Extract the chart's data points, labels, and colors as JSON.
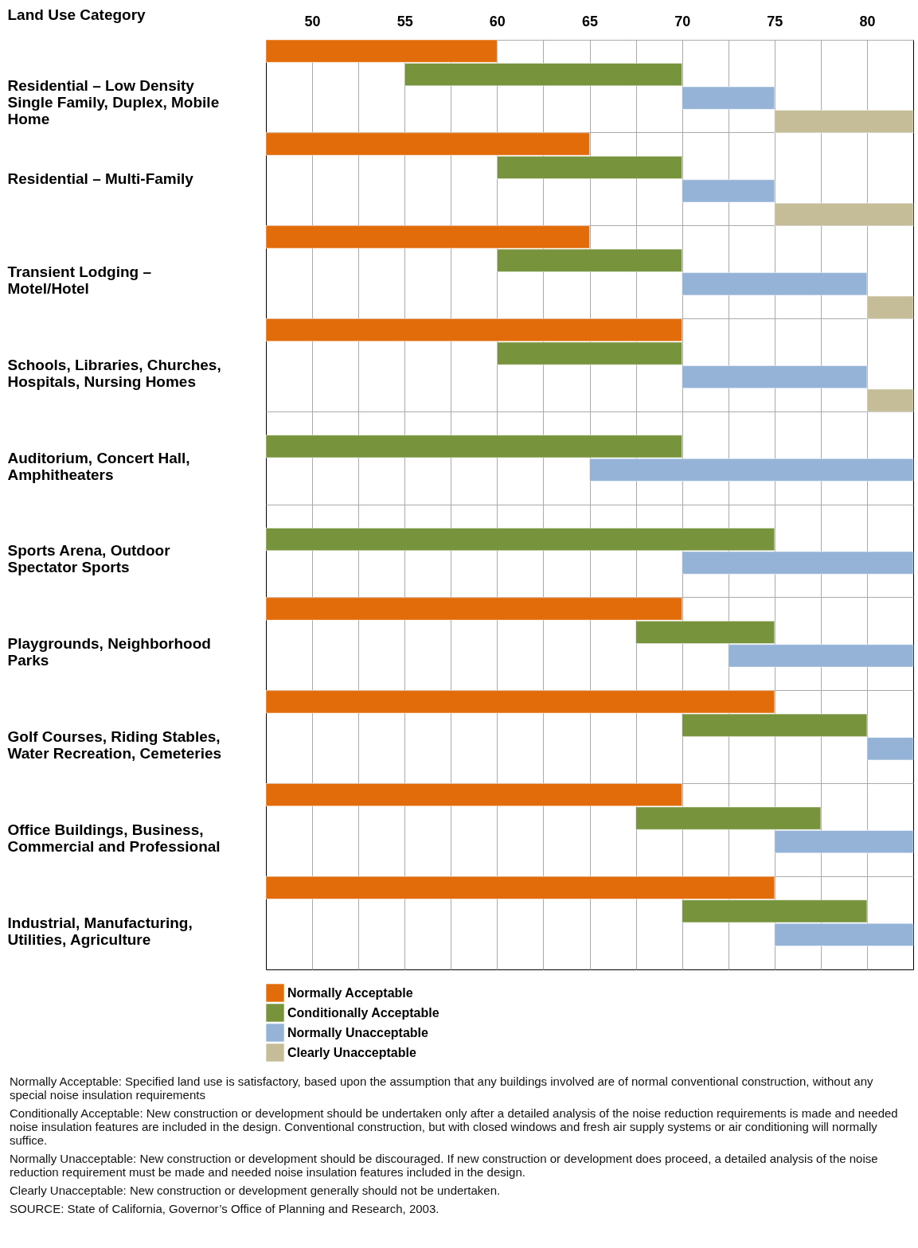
{
  "chart_data": {
    "type": "bar",
    "orientation": "horizontal",
    "ylabel": "Land Use Category",
    "categories": [
      "Residential – Low Density Single Family, Duplex, Mobile Home",
      "Residential – Multi-Family",
      "Transient Lodging – Motel/Hotel",
      "Schools, Libraries, Churches, Hospitals, Nursing Homes",
      "Auditorium, Concert Hall, Amphitheaters",
      "Sports Arena, Outdoor Spectator Sports",
      "Playgrounds, Neighborhood Parks",
      "Golf Courses, Riding Stables, Water Recreation, Cemeteries",
      "Office Buildings, Business, Commercial and Professional",
      "Industrial, Manufacturing, Utilities, Agriculture"
    ],
    "series": [
      {
        "name": "Normally Acceptable",
        "color": "#e36c0a",
        "base": [
          47.5,
          47.5,
          47.5,
          47.5,
          null,
          null,
          47.5,
          47.5,
          47.5,
          47.5
        ],
        "values": [
          12.5,
          17.5,
          17.5,
          22.5,
          null,
          null,
          22.5,
          27.5,
          22.5,
          27.5
        ]
      },
      {
        "name": "Conditionally Acceptable",
        "color": "#77933c",
        "base": [
          55,
          60,
          60,
          60,
          47.5,
          47.5,
          67.5,
          70,
          67.5,
          70
        ],
        "values": [
          15,
          10,
          10,
          10,
          22.5,
          27.5,
          7.5,
          10,
          10,
          10
        ]
      },
      {
        "name": "Normally Unacceptable",
        "color": "#95b3d7",
        "base": [
          70,
          70,
          70,
          70,
          65,
          70,
          72.5,
          80,
          75,
          75
        ],
        "values": [
          5,
          5,
          10,
          10,
          17.5,
          12.5,
          10,
          2.5,
          7.5,
          7.5
        ]
      },
      {
        "name": "Clearly Unacceptable",
        "color": "#c4bd97",
        "base": [
          75,
          75,
          80,
          80,
          null,
          null,
          null,
          null,
          null,
          null
        ],
        "values": [
          7.5,
          7.5,
          2.5,
          2.5,
          null,
          null,
          null,
          null,
          null,
          null
        ]
      }
    ],
    "xlim": [
      47.5,
      82.5
    ],
    "xticks": [
      50,
      {
        "value": 52.5,
        "label": null
      },
      55,
      {
        "value": 57.5,
        "label": null
      },
      60,
      {
        "value": 62.5,
        "label": null
      },
      65,
      {
        "value": 67.5,
        "label": null
      },
      70,
      {
        "value": 72.5,
        "label": null
      },
      75,
      {
        "value": 77.5,
        "label": null
      },
      80
    ],
    "grid": true,
    "legend": "bottom",
    "annotations": [
      "Normally Acceptable: Specified land use is satisfactory, based upon the assumption that any buildings involved are of normal conventional construction, without any special noise insulation requirements",
      "Conditionally Acceptable: New construction or development should be undertaken only after a detailed analysis of the noise reduction requirements is made and needed noise insulation features are included in the design. Conventional construction, but with closed windows and fresh air supply systems or air conditioning will normally suffice.",
      "Normally Unacceptable: New construction or development should be discouraged. If new construction or development does proceed, a detailed analysis of the noise reduction requirement must be made and needed noise insulation features included in the design.",
      "Clearly Unacceptable: New construction or development generally should not be undertaken.",
      "SOURCE:  State of California, Governor’s Office of Planning and Research, 2003."
    ]
  }
}
